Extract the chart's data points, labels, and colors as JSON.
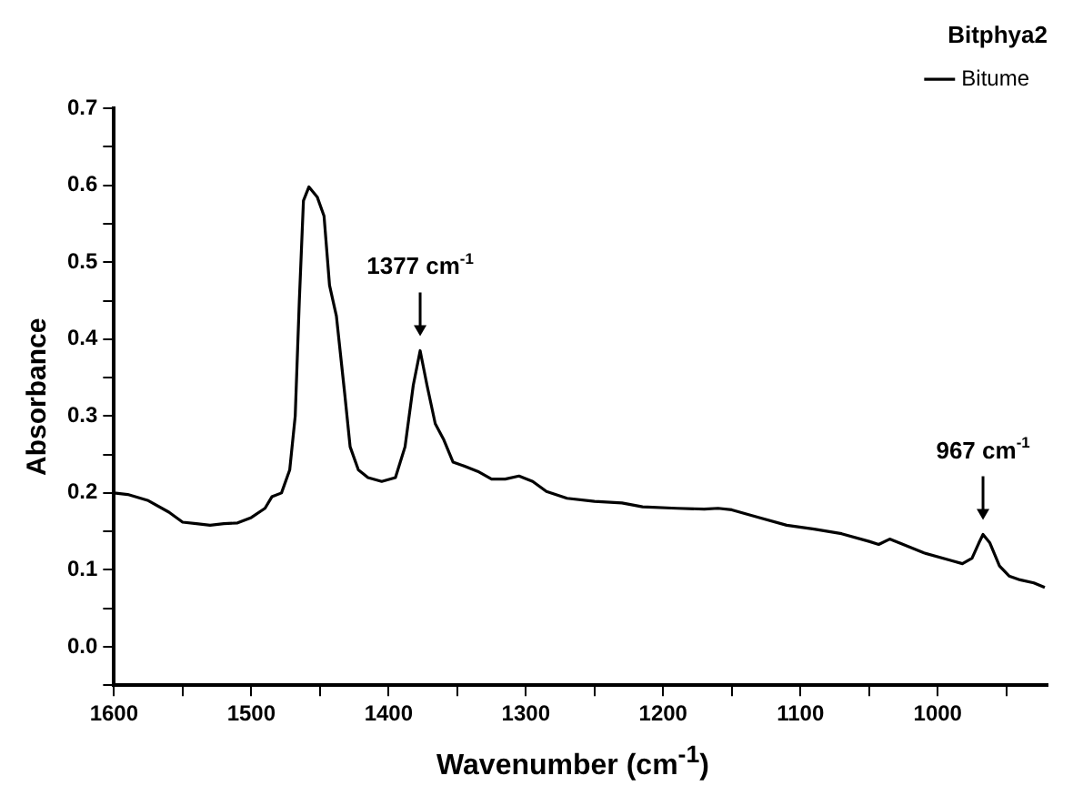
{
  "chart_data": {
    "type": "line",
    "subtitle": "Bitphya2",
    "xlabel": "Wavenumber (cm$^{-1}$)",
    "ylabel": "Absorbance",
    "x": [
      1600,
      1590,
      1575,
      1560,
      1550,
      1540,
      1530,
      1520,
      1510,
      1500,
      1490,
      1485,
      1478,
      1472,
      1468,
      1465,
      1462,
      1458,
      1452,
      1447,
      1443,
      1438,
      1432,
      1428,
      1422,
      1415,
      1405,
      1395,
      1388,
      1382,
      1377,
      1372,
      1366,
      1360,
      1353,
      1345,
      1335,
      1325,
      1315,
      1305,
      1295,
      1285,
      1270,
      1250,
      1230,
      1215,
      1190,
      1170,
      1160,
      1150,
      1130,
      1110,
      1090,
      1070,
      1050,
      1043,
      1035,
      1028,
      1010,
      990,
      982,
      975,
      970,
      967,
      962,
      955,
      948,
      940,
      930,
      922
    ],
    "series": [
      {
        "name": "Bitume",
        "color": "#000000",
        "values": [
          0.2,
          0.198,
          0.19,
          0.175,
          0.162,
          0.16,
          0.158,
          0.16,
          0.161,
          0.168,
          0.18,
          0.195,
          0.2,
          0.23,
          0.3,
          0.45,
          0.58,
          0.598,
          0.585,
          0.56,
          0.47,
          0.43,
          0.33,
          0.26,
          0.23,
          0.22,
          0.215,
          0.22,
          0.26,
          0.34,
          0.385,
          0.34,
          0.29,
          0.27,
          0.24,
          0.235,
          0.228,
          0.218,
          0.218,
          0.222,
          0.215,
          0.202,
          0.193,
          0.189,
          0.187,
          0.182,
          0.18,
          0.179,
          0.18,
          0.178,
          0.168,
          0.158,
          0.153,
          0.147,
          0.137,
          0.133,
          0.14,
          0.135,
          0.122,
          0.112,
          0.108,
          0.115,
          0.135,
          0.146,
          0.135,
          0.105,
          0.092,
          0.087,
          0.083,
          0.077
        ]
      }
    ],
    "xlim": [
      1600,
      920
    ],
    "xticks": [
      1600,
      {
        "value": 1550,
        "label": null
      },
      1500,
      {
        "value": 1450,
        "label": null
      },
      1400,
      {
        "value": 1350,
        "label": null
      },
      1300,
      {
        "value": 1250,
        "label": null
      },
      1200,
      {
        "value": 1150,
        "label": null
      },
      1100,
      {
        "value": 1050,
        "label": null
      },
      1000,
      {
        "value": 950,
        "label": null
      }
    ],
    "ylim": [
      -0.05,
      0.7
    ],
    "yticks": [
      {
        "value": -0.05,
        "label": null
      },
      {
        "value": 0,
        "label": "0.0"
      },
      {
        "value": 0.05,
        "label": null
      },
      0.1,
      {
        "value": 0.15,
        "label": null
      },
      0.2,
      {
        "value": 0.25,
        "label": null
      },
      0.3,
      {
        "value": 0.35,
        "label": null
      },
      0.4,
      {
        "value": 0.45,
        "label": null
      },
      0.5,
      {
        "value": 0.55,
        "label": null
      },
      0.6,
      {
        "value": 0.65,
        "label": null
      },
      0.7
    ],
    "annotations": [
      {
        "text": "1377 cm$^{-1}$",
        "x": 1377,
        "y": 0.385
      },
      {
        "text": "967 cm$^{-1}$",
        "x": 967,
        "y": 0.146
      }
    ],
    "grid": false,
    "legend": "top right",
    "marker": "none",
    "line_style": "solid"
  }
}
